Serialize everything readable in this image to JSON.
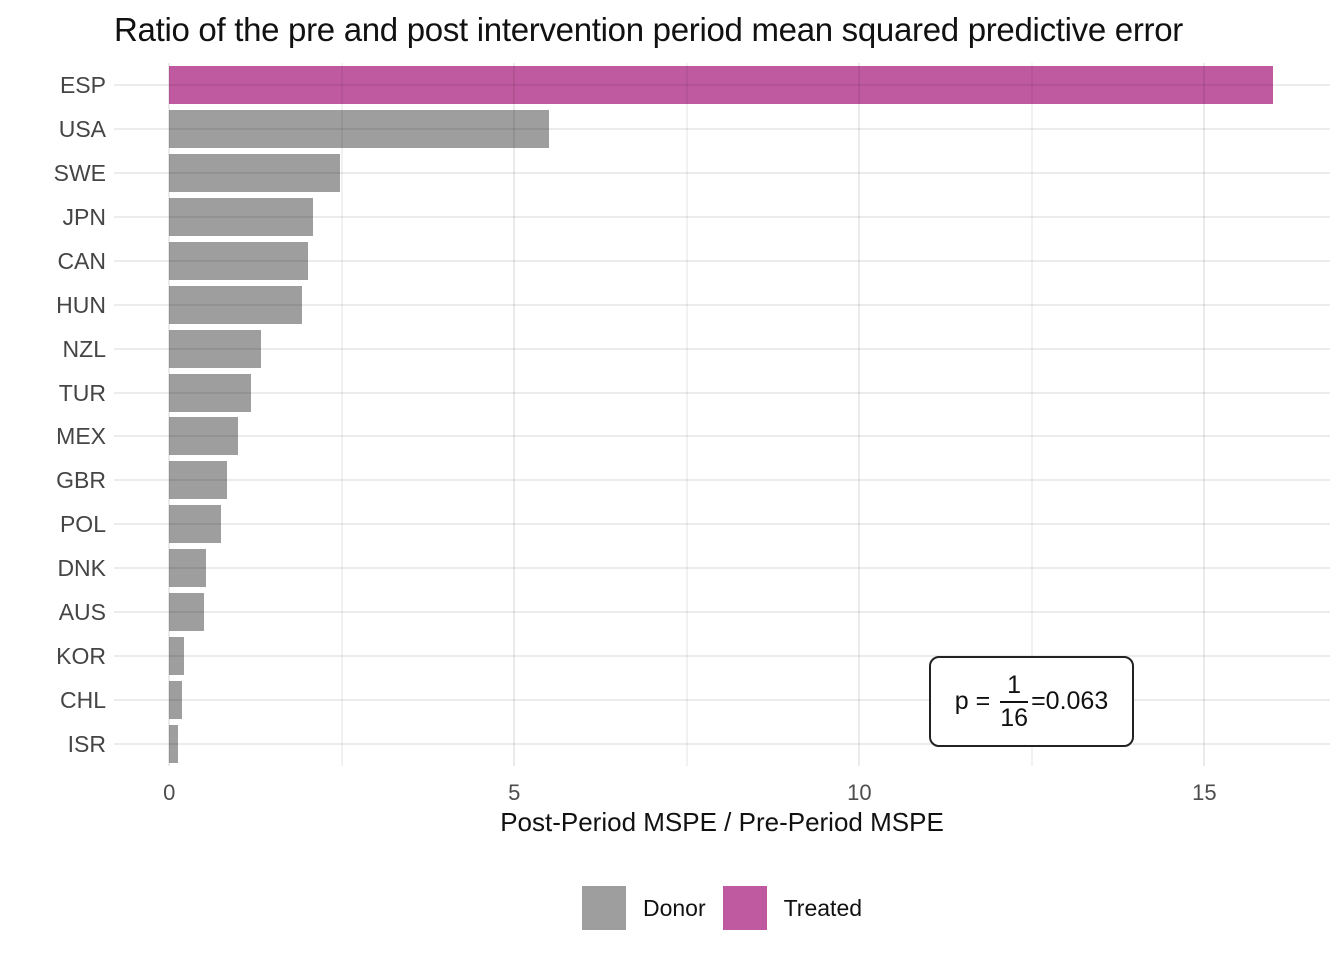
{
  "title": "Ratio of the pre and post intervention period mean squared predictive error",
  "chart_data": {
    "type": "bar",
    "orientation": "horizontal",
    "title": "Ratio of the pre and post intervention period mean squared predictive error",
    "categories": [
      "ESP",
      "USA",
      "SWE",
      "JPN",
      "CAN",
      "HUN",
      "NZL",
      "TUR",
      "MEX",
      "GBR",
      "POL",
      "DNK",
      "AUS",
      "KOR",
      "CHL",
      "ISR"
    ],
    "values": [
      16.0,
      5.5,
      2.48,
      2.08,
      2.01,
      1.92,
      1.33,
      1.18,
      1.0,
      0.84,
      0.75,
      0.53,
      0.51,
      0.21,
      0.18,
      0.13
    ],
    "groups": [
      "Treated",
      "Donor",
      "Donor",
      "Donor",
      "Donor",
      "Donor",
      "Donor",
      "Donor",
      "Donor",
      "Donor",
      "Donor",
      "Donor",
      "Donor",
      "Donor",
      "Donor",
      "Donor"
    ],
    "colors": {
      "Donor": "#9E9E9E",
      "Treated": "#C05AA0"
    },
    "xlabel": "Post-Period MSPE / Pre-Period MSPE",
    "ylabel": "",
    "x_ticks": [
      0,
      5,
      10,
      15
    ],
    "x_tick_labels": [
      "0",
      "5",
      "10",
      "15"
    ],
    "x_minor_ticks": [
      2.5,
      7.5,
      12.5
    ],
    "xlim": [
      -0.8,
      16.82
    ],
    "grid": true,
    "legend_position": "bottom",
    "legend": [
      {
        "label": "Donor",
        "color": "#9E9E9E"
      },
      {
        "label": "Treated",
        "color": "#C05AA0"
      }
    ]
  },
  "annotation": {
    "prefix": "p = ",
    "numerator": "1",
    "denominator": "16",
    "result": "=0.063"
  }
}
